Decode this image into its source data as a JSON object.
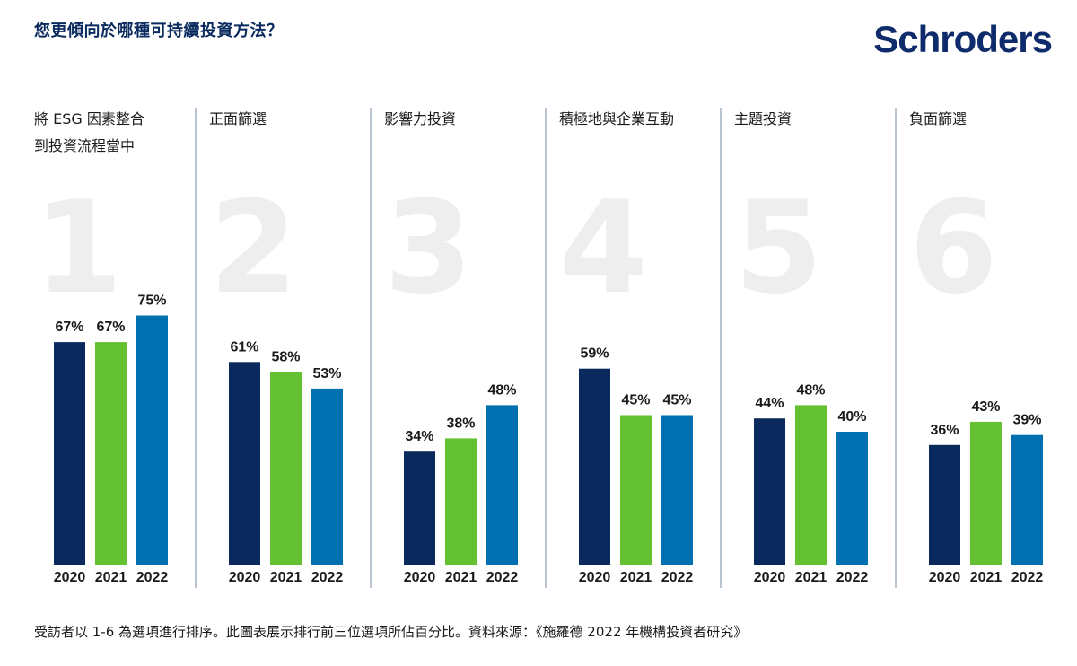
{
  "title": "您更傾向於哪種可持續投資方法？",
  "brand": {
    "name": "Schroders"
  },
  "footnote": "受訪者以 1-6 為選項進行排序。此圖表展示排行前三位選項所佔百分比。資料來源：《施羅德 2022 年機構投資者研究》",
  "colors": {
    "2020": "#0a2a5e",
    "2021": "#63c132",
    "2022": "#0070b0",
    "divider": "#b8c4d0",
    "rank_number": "#eeeeee",
    "title": "#0a2a5e",
    "brand": "#0e2b6b"
  },
  "chart_data": {
    "type": "bar",
    "title": "您更傾向於哪種可持續投資方法？",
    "series_keys": [
      "2020",
      "2021",
      "2022"
    ],
    "ylim": [
      0,
      100
    ],
    "grid": false,
    "groups": [
      {
        "rank": "1",
        "label_lines": [
          "將 ESG 因素整合",
          "到投資流程當中"
        ],
        "values": [
          67,
          67,
          75
        ],
        "labels": [
          "67%",
          "67%",
          "75%"
        ]
      },
      {
        "rank": "2",
        "label_lines": [
          "正面篩選"
        ],
        "values": [
          61,
          58,
          53
        ],
        "labels": [
          "61%",
          "58%",
          "53%"
        ]
      },
      {
        "rank": "3",
        "label_lines": [
          "影響力投資"
        ],
        "values": [
          34,
          38,
          48
        ],
        "labels": [
          "34%",
          "38%",
          "48%"
        ]
      },
      {
        "rank": "4",
        "label_lines": [
          "積極地與企業互動"
        ],
        "values": [
          59,
          45,
          45
        ],
        "labels": [
          "59%",
          "45%",
          "45%"
        ]
      },
      {
        "rank": "5",
        "label_lines": [
          "主題投資"
        ],
        "values": [
          44,
          48,
          40
        ],
        "labels": [
          "44%",
          "48%",
          "40%"
        ]
      },
      {
        "rank": "6",
        "label_lines": [
          "負面篩選"
        ],
        "values": [
          36,
          43,
          39
        ],
        "labels": [
          "36%",
          "43%",
          "39%"
        ]
      }
    ]
  }
}
